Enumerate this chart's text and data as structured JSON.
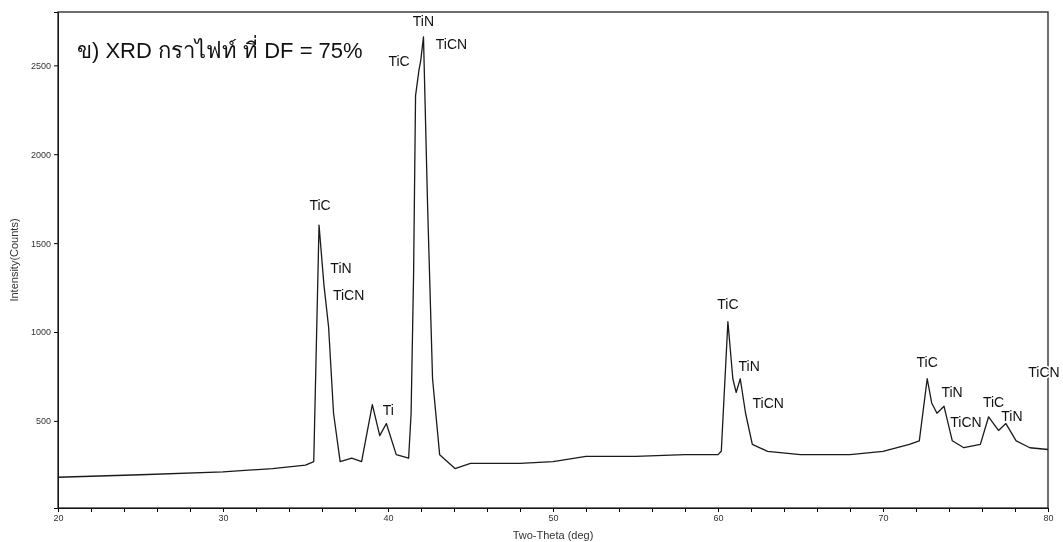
{
  "chart_data": {
    "type": "line",
    "title": "ข) XRD กราไฟท์ ที่ DF = 75%",
    "xlabel": "Two-Theta (deg)",
    "ylabel": "Intensity(Counts)",
    "xlim": [
      20,
      80
    ],
    "ylim": [
      10,
      2800
    ],
    "xticks": [
      20,
      {
        "value": 22,
        "label": null
      },
      {
        "value": 24,
        "label": null
      },
      {
        "value": 26,
        "label": null
      },
      {
        "value": 28,
        "label": null
      },
      30,
      {
        "value": 32,
        "label": null
      },
      {
        "value": 34,
        "label": null
      },
      {
        "value": 36,
        "label": null
      },
      {
        "value": 38,
        "label": null
      },
      40,
      {
        "value": 42,
        "label": null
      },
      {
        "value": 44,
        "label": null
      },
      {
        "value": 46,
        "label": null
      },
      {
        "value": 48,
        "label": null
      },
      50,
      {
        "value": 52,
        "label": null
      },
      {
        "value": 54,
        "label": null
      },
      {
        "value": 56,
        "label": null
      },
      {
        "value": 58,
        "label": null
      },
      60,
      {
        "value": 62,
        "label": null
      },
      {
        "value": 64,
        "label": null
      },
      {
        "value": 66,
        "label": null
      },
      {
        "value": 68,
        "label": null
      },
      70,
      {
        "value": 72,
        "label": null
      },
      {
        "value": 74,
        "label": null
      },
      {
        "value": 76,
        "label": null
      },
      {
        "value": 78,
        "label": null
      },
      80
    ],
    "yticks": [
      500,
      1000,
      1500,
      2000,
      2500
    ],
    "grid": false,
    "marker": "none",
    "line_style": "solid",
    "x": [
      20,
      25,
      30,
      33,
      35,
      35.5,
      35.82,
      36.12,
      36.4,
      36.7,
      37.1,
      37.8,
      38.4,
      39.05,
      39.5,
      39.9,
      40.5,
      41.25,
      41.4,
      41.55,
      41.67,
      41.88,
      41.98,
      42.15,
      42.4,
      42.7,
      43.13,
      44.06,
      45,
      48,
      50,
      52,
      55,
      58,
      60,
      60.2,
      60.6,
      60.9,
      61.1,
      61.35,
      61.67,
      62.08,
      63,
      65,
      68,
      70,
      71.6,
      72.2,
      72.68,
      72.95,
      73.27,
      73.7,
      74,
      74.2,
      74.9,
      75.9,
      76.4,
      77,
      77.45,
      78.07,
      78.9,
      80
    ],
    "series": [
      {
        "color": "#1a1a1a",
        "values": [
          183,
          197,
          213,
          232,
          251,
          271,
          1601,
          1262,
          1028,
          543,
          271,
          290,
          271,
          591,
          417,
          485,
          310,
          290,
          543,
          1320,
          2330,
          2476,
          2524,
          2660,
          1708,
          737,
          310,
          232,
          261,
          261,
          271,
          300,
          300,
          310,
          310,
          329,
          1058,
          737,
          660,
          737,
          543,
          368,
          329,
          310,
          310,
          329,
          368,
          388,
          737,
          601,
          543,
          582,
          465,
          388,
          349,
          368,
          523,
          446,
          485,
          388,
          349,
          339
        ]
      }
    ],
    "annotations": [
      {
        "text": "TiC",
        "x": 35.82,
        "y": 1601
      },
      {
        "text": "TiN",
        "x": 36.12,
        "y": 1262
      },
      {
        "text": "TiCN",
        "x": 36.4,
        "y": 1028
      },
      {
        "text": "Ti",
        "x": 39.9,
        "y": 485
      },
      {
        "text": "TiC",
        "x": 41.88,
        "y": 2476
      },
      {
        "text": "TiN",
        "x": 42.15,
        "y": 2660
      },
      {
        "text": "TiCN",
        "x": 42.15,
        "y": 2660
      },
      {
        "text": "TiC",
        "x": 60.6,
        "y": 1058
      },
      {
        "text": "TiN",
        "x": 61.1,
        "y": 660
      },
      {
        "text": "TiCN",
        "x": 61.35,
        "y": 737
      },
      {
        "text": "TiC",
        "x": 72.68,
        "y": 737
      },
      {
        "text": "TiN",
        "x": 73.7,
        "y": 582
      },
      {
        "text": "TiCN",
        "x": 74,
        "y": 465
      },
      {
        "text": "TiC",
        "x": 76.4,
        "y": 523
      },
      {
        "text": "TiN",
        "x": 77.45,
        "y": 485
      },
      "TiCN"
    ]
  }
}
